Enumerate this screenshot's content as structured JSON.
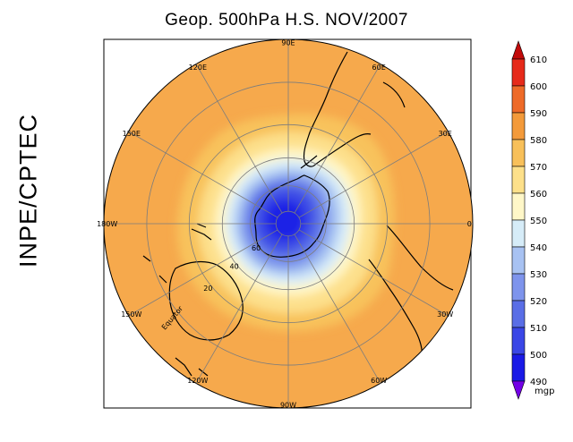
{
  "title": "Geop. 500hPa H.S. NOV/2007",
  "side_label": "INPE/CPTEC",
  "map": {
    "projection": "polar-stereographic-south",
    "longitude_labels": [
      {
        "text": "90W",
        "lon": -90
      },
      {
        "text": "60W",
        "lon": -60
      },
      {
        "text": "30W",
        "lon": -30
      },
      {
        "text": "0",
        "lon": 0
      },
      {
        "text": "30E",
        "lon": 30
      },
      {
        "text": "60E",
        "lon": 60
      },
      {
        "text": "90E",
        "lon": 90
      },
      {
        "text": "120E",
        "lon": 120
      },
      {
        "text": "150E",
        "lon": 150
      },
      {
        "text": "180W",
        "lon": 180
      },
      {
        "text": "150W",
        "lon": -150
      },
      {
        "text": "120W",
        "lon": -120
      }
    ],
    "latitude_labels": [
      {
        "text": "Equator",
        "lat": 0
      },
      {
        "text": "20",
        "lat": -20
      },
      {
        "text": "40",
        "lat": -40
      },
      {
        "text": "60",
        "lat": -60
      }
    ]
  },
  "colorbar": {
    "unit": "mgp",
    "levels": [
      "490",
      "500",
      "510",
      "520",
      "530",
      "540",
      "550",
      "560",
      "570",
      "580",
      "590",
      "600",
      "610"
    ],
    "colors": [
      "#7300e6",
      "#1a1ae6",
      "#3a46e6",
      "#5a6ee6",
      "#7e94ec",
      "#a8c2f2",
      "#d6ecf8",
      "#fff7c8",
      "#fde08a",
      "#f8c05a",
      "#f39a3a",
      "#ee6a28",
      "#e62a1a",
      "#c20a0a"
    ]
  }
}
